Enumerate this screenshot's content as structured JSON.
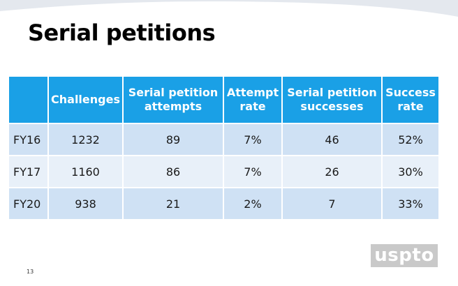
{
  "title": "Serial petitions",
  "table": {
    "headers": [
      "",
      "Challenges",
      "Serial petition attempts",
      "Attempt rate",
      "Serial petition successes",
      "Success rate"
    ],
    "rows": [
      [
        "FY16",
        "1232",
        "89",
        "7%",
        "46",
        "52%"
      ],
      [
        "FY17",
        "1160",
        "86",
        "7%",
        "26",
        "30%"
      ],
      [
        "FY20",
        "938",
        "21",
        "2%",
        "7",
        "33%"
      ]
    ]
  },
  "colors": {
    "header": "#1aa0e6",
    "row_dark": "#cfe1f4",
    "row_light": "#e8f0f9",
    "logo": "#c9c9c9"
  },
  "logo_text": "uspto",
  "page_number": "13"
}
